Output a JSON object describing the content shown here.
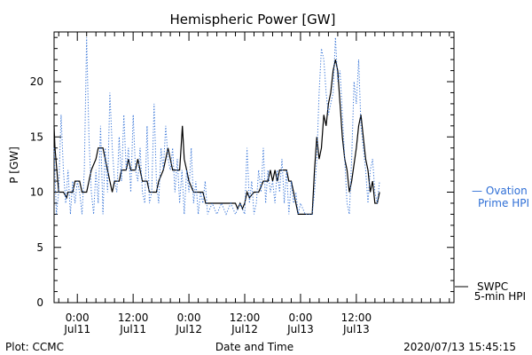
{
  "chart_data": {
    "type": "line",
    "title": "Hemispheric Power [GW]",
    "xlabel": "Date and Time",
    "ylabel": "P [GW]",
    "ylim": [
      0,
      24.5
    ],
    "yticks": [
      0,
      5,
      10,
      15,
      20
    ],
    "xlim": [
      -5,
      81
    ],
    "xticks": [
      {
        "x": 0,
        "time": "0:00",
        "date": "Jul11"
      },
      {
        "x": 12,
        "time": "12:00",
        "date": "Jul11"
      },
      {
        "x": 24,
        "time": "0:00",
        "date": "Jul12"
      },
      {
        "x": 36,
        "time": "12:00",
        "date": "Jul12"
      },
      {
        "x": 48,
        "time": "0:00",
        "date": "Jul13"
      },
      {
        "x": 60,
        "time": "12:00",
        "date": "Jul13"
      }
    ],
    "series": [
      {
        "name": "SWPC 5-min HPI",
        "color": "#000000",
        "style": "solid",
        "points": [
          [
            -5,
            16
          ],
          [
            -4.8,
            14
          ],
          [
            -4.4,
            12
          ],
          [
            -4,
            10
          ],
          [
            -3,
            10
          ],
          [
            -2.3,
            9.5
          ],
          [
            -2,
            10
          ],
          [
            -1,
            10
          ],
          [
            -0.5,
            11
          ],
          [
            0.5,
            11
          ],
          [
            1,
            10
          ],
          [
            2,
            10
          ],
          [
            2.5,
            11
          ],
          [
            3,
            12
          ],
          [
            4,
            13
          ],
          [
            4.5,
            14
          ],
          [
            5.5,
            14
          ],
          [
            6,
            13
          ],
          [
            6.5,
            12
          ],
          [
            7,
            11
          ],
          [
            7.5,
            10
          ],
          [
            8,
            11
          ],
          [
            9,
            11
          ],
          [
            9.5,
            12
          ],
          [
            10.5,
            12
          ],
          [
            11,
            13
          ],
          [
            11.5,
            12
          ],
          [
            12.5,
            12
          ],
          [
            13,
            13
          ],
          [
            13.5,
            12
          ],
          [
            14,
            11
          ],
          [
            15,
            11
          ],
          [
            15.5,
            10
          ],
          [
            16,
            10
          ],
          [
            17,
            10
          ],
          [
            17.5,
            11
          ],
          [
            18.5,
            12
          ],
          [
            19,
            13
          ],
          [
            19.5,
            14
          ],
          [
            20,
            13
          ],
          [
            20.5,
            12
          ],
          [
            22,
            12
          ],
          [
            22.3,
            14
          ],
          [
            22.6,
            16
          ],
          [
            23,
            13
          ],
          [
            23.5,
            12
          ],
          [
            24,
            11
          ],
          [
            25,
            10
          ],
          [
            26,
            10
          ],
          [
            27,
            10
          ],
          [
            27.3,
            9.5
          ],
          [
            27.6,
            9
          ],
          [
            29,
            9
          ],
          [
            30,
            9
          ],
          [
            32,
            9
          ],
          [
            34,
            9
          ],
          [
            34.5,
            8.5
          ],
          [
            35,
            9
          ],
          [
            35.5,
            8.5
          ],
          [
            36,
            9
          ],
          [
            36.5,
            10
          ],
          [
            37,
            9.5
          ],
          [
            38,
            10
          ],
          [
            39,
            10
          ],
          [
            40,
            11
          ],
          [
            41,
            11
          ],
          [
            41.5,
            12
          ],
          [
            42,
            11
          ],
          [
            42.5,
            12
          ],
          [
            43,
            11
          ],
          [
            43.5,
            12
          ],
          [
            44,
            12
          ],
          [
            45,
            12
          ],
          [
            45.5,
            11
          ],
          [
            46,
            11
          ],
          [
            46.5,
            10
          ],
          [
            47,
            9
          ],
          [
            47.5,
            8
          ],
          [
            49,
            8
          ],
          [
            50,
            8
          ],
          [
            50.5,
            8
          ],
          [
            51,
            12
          ],
          [
            51.5,
            15
          ],
          [
            52,
            13
          ],
          [
            52.5,
            14
          ],
          [
            53,
            17
          ],
          [
            53.5,
            16
          ],
          [
            54,
            18
          ],
          [
            54.5,
            19
          ],
          [
            55,
            21
          ],
          [
            55.5,
            22
          ],
          [
            56,
            21
          ],
          [
            56.5,
            18
          ],
          [
            57,
            15
          ],
          [
            57.5,
            13
          ],
          [
            58,
            12
          ],
          [
            58.5,
            10
          ],
          [
            59,
            11
          ],
          [
            60,
            14
          ],
          [
            60.5,
            16
          ],
          [
            61,
            17
          ],
          [
            61.5,
            15
          ],
          [
            62,
            13
          ],
          [
            62.5,
            12
          ],
          [
            63,
            10
          ],
          [
            63.5,
            11
          ],
          [
            64,
            9
          ],
          [
            64.5,
            9
          ],
          [
            65,
            10
          ]
        ]
      },
      {
        "name": "Ovation Prime HPI",
        "color": "#2f6fd6",
        "style": "dotted",
        "points": [
          [
            -5,
            14
          ],
          [
            -4.5,
            8
          ],
          [
            -4,
            10
          ],
          [
            -3.5,
            17
          ],
          [
            -3,
            12
          ],
          [
            -2.5,
            9
          ],
          [
            -2,
            12
          ],
          [
            -1.5,
            8
          ],
          [
            -1,
            11
          ],
          [
            -0.5,
            9
          ],
          [
            0,
            11
          ],
          [
            0.5,
            10
          ],
          [
            1,
            8
          ],
          [
            1.5,
            12
          ],
          [
            2,
            24
          ],
          [
            2.5,
            15
          ],
          [
            3,
            10
          ],
          [
            3.5,
            8
          ],
          [
            4,
            12
          ],
          [
            4.5,
            9
          ],
          [
            5,
            16
          ],
          [
            5.5,
            8
          ],
          [
            6,
            14
          ],
          [
            6.5,
            10
          ],
          [
            7,
            19
          ],
          [
            7.5,
            14
          ],
          [
            8,
            11
          ],
          [
            8.5,
            10
          ],
          [
            9,
            15
          ],
          [
            9.5,
            11
          ],
          [
            10,
            17
          ],
          [
            10.5,
            12
          ],
          [
            11,
            14
          ],
          [
            11.5,
            10
          ],
          [
            12,
            17
          ],
          [
            12.5,
            12
          ],
          [
            13,
            11
          ],
          [
            13.5,
            14
          ],
          [
            14,
            10
          ],
          [
            14.5,
            9
          ],
          [
            15,
            16
          ],
          [
            15.5,
            9
          ],
          [
            16,
            10
          ],
          [
            16.5,
            18
          ],
          [
            17,
            11
          ],
          [
            17.5,
            9
          ],
          [
            18,
            14
          ],
          [
            18.5,
            12
          ],
          [
            19,
            16
          ],
          [
            19.5,
            13
          ],
          [
            20,
            12
          ],
          [
            20.5,
            14
          ],
          [
            21,
            10
          ],
          [
            21.5,
            13
          ],
          [
            22,
            9
          ],
          [
            22.5,
            12
          ],
          [
            23,
            8
          ],
          [
            23.5,
            12
          ],
          [
            24,
            10
          ],
          [
            24.5,
            14
          ],
          [
            25,
            9
          ],
          [
            25.5,
            11
          ],
          [
            26,
            8
          ],
          [
            26.5,
            10
          ],
          [
            27,
            9
          ],
          [
            27.5,
            11
          ],
          [
            28,
            8
          ],
          [
            29,
            9
          ],
          [
            30,
            8
          ],
          [
            31,
            9
          ],
          [
            32,
            8
          ],
          [
            33,
            9
          ],
          [
            34,
            8
          ],
          [
            35,
            9
          ],
          [
            36,
            8
          ],
          [
            36.5,
            14
          ],
          [
            37,
            9
          ],
          [
            37.5,
            11
          ],
          [
            38,
            8
          ],
          [
            38.5,
            9
          ],
          [
            39,
            12
          ],
          [
            39.5,
            10
          ],
          [
            40,
            14
          ],
          [
            40.5,
            9
          ],
          [
            41,
            12
          ],
          [
            41.5,
            10
          ],
          [
            42,
            11
          ],
          [
            42.5,
            9
          ],
          [
            43,
            12
          ],
          [
            43.5,
            10
          ],
          [
            44,
            13
          ],
          [
            44.5,
            9
          ],
          [
            45,
            12
          ],
          [
            45.5,
            8
          ],
          [
            46,
            11
          ],
          [
            46.5,
            9
          ],
          [
            47,
            10
          ],
          [
            47.5,
            8
          ],
          [
            48,
            9
          ],
          [
            49,
            8
          ],
          [
            50,
            8
          ],
          [
            50.5,
            8
          ],
          [
            51,
            10
          ],
          [
            51.5,
            13
          ],
          [
            52,
            19
          ],
          [
            52.5,
            23
          ],
          [
            53,
            22
          ],
          [
            53.5,
            19
          ],
          [
            54,
            17
          ],
          [
            54.5,
            18
          ],
          [
            55,
            19
          ],
          [
            55.5,
            24
          ],
          [
            56,
            20
          ],
          [
            56.5,
            21
          ],
          [
            57,
            17
          ],
          [
            57.5,
            13
          ],
          [
            58,
            9
          ],
          [
            58.5,
            8
          ],
          [
            59,
            13
          ],
          [
            59.5,
            20
          ],
          [
            60,
            18
          ],
          [
            60.5,
            22
          ],
          [
            61,
            16
          ],
          [
            61.5,
            14
          ],
          [
            62,
            12
          ],
          [
            62.5,
            9
          ],
          [
            63,
            12
          ],
          [
            63.5,
            13
          ],
          [
            64,
            10
          ],
          [
            64.5,
            9
          ],
          [
            65,
            11
          ]
        ]
      }
    ],
    "legend": [
      {
        "lines": [
          "— Ovation",
          "Prime HPI"
        ],
        "color": "#2f6fd6",
        "placement": "right-middle"
      },
      {
        "lines": [
          "SWPC",
          "5-min HPI"
        ],
        "color": "#000000",
        "placement": "right-bottom"
      }
    ],
    "grid": false
  },
  "footer": {
    "plot_credit": "Plot: CCMC",
    "timestamp": "2020/07/13 15:45:15"
  }
}
